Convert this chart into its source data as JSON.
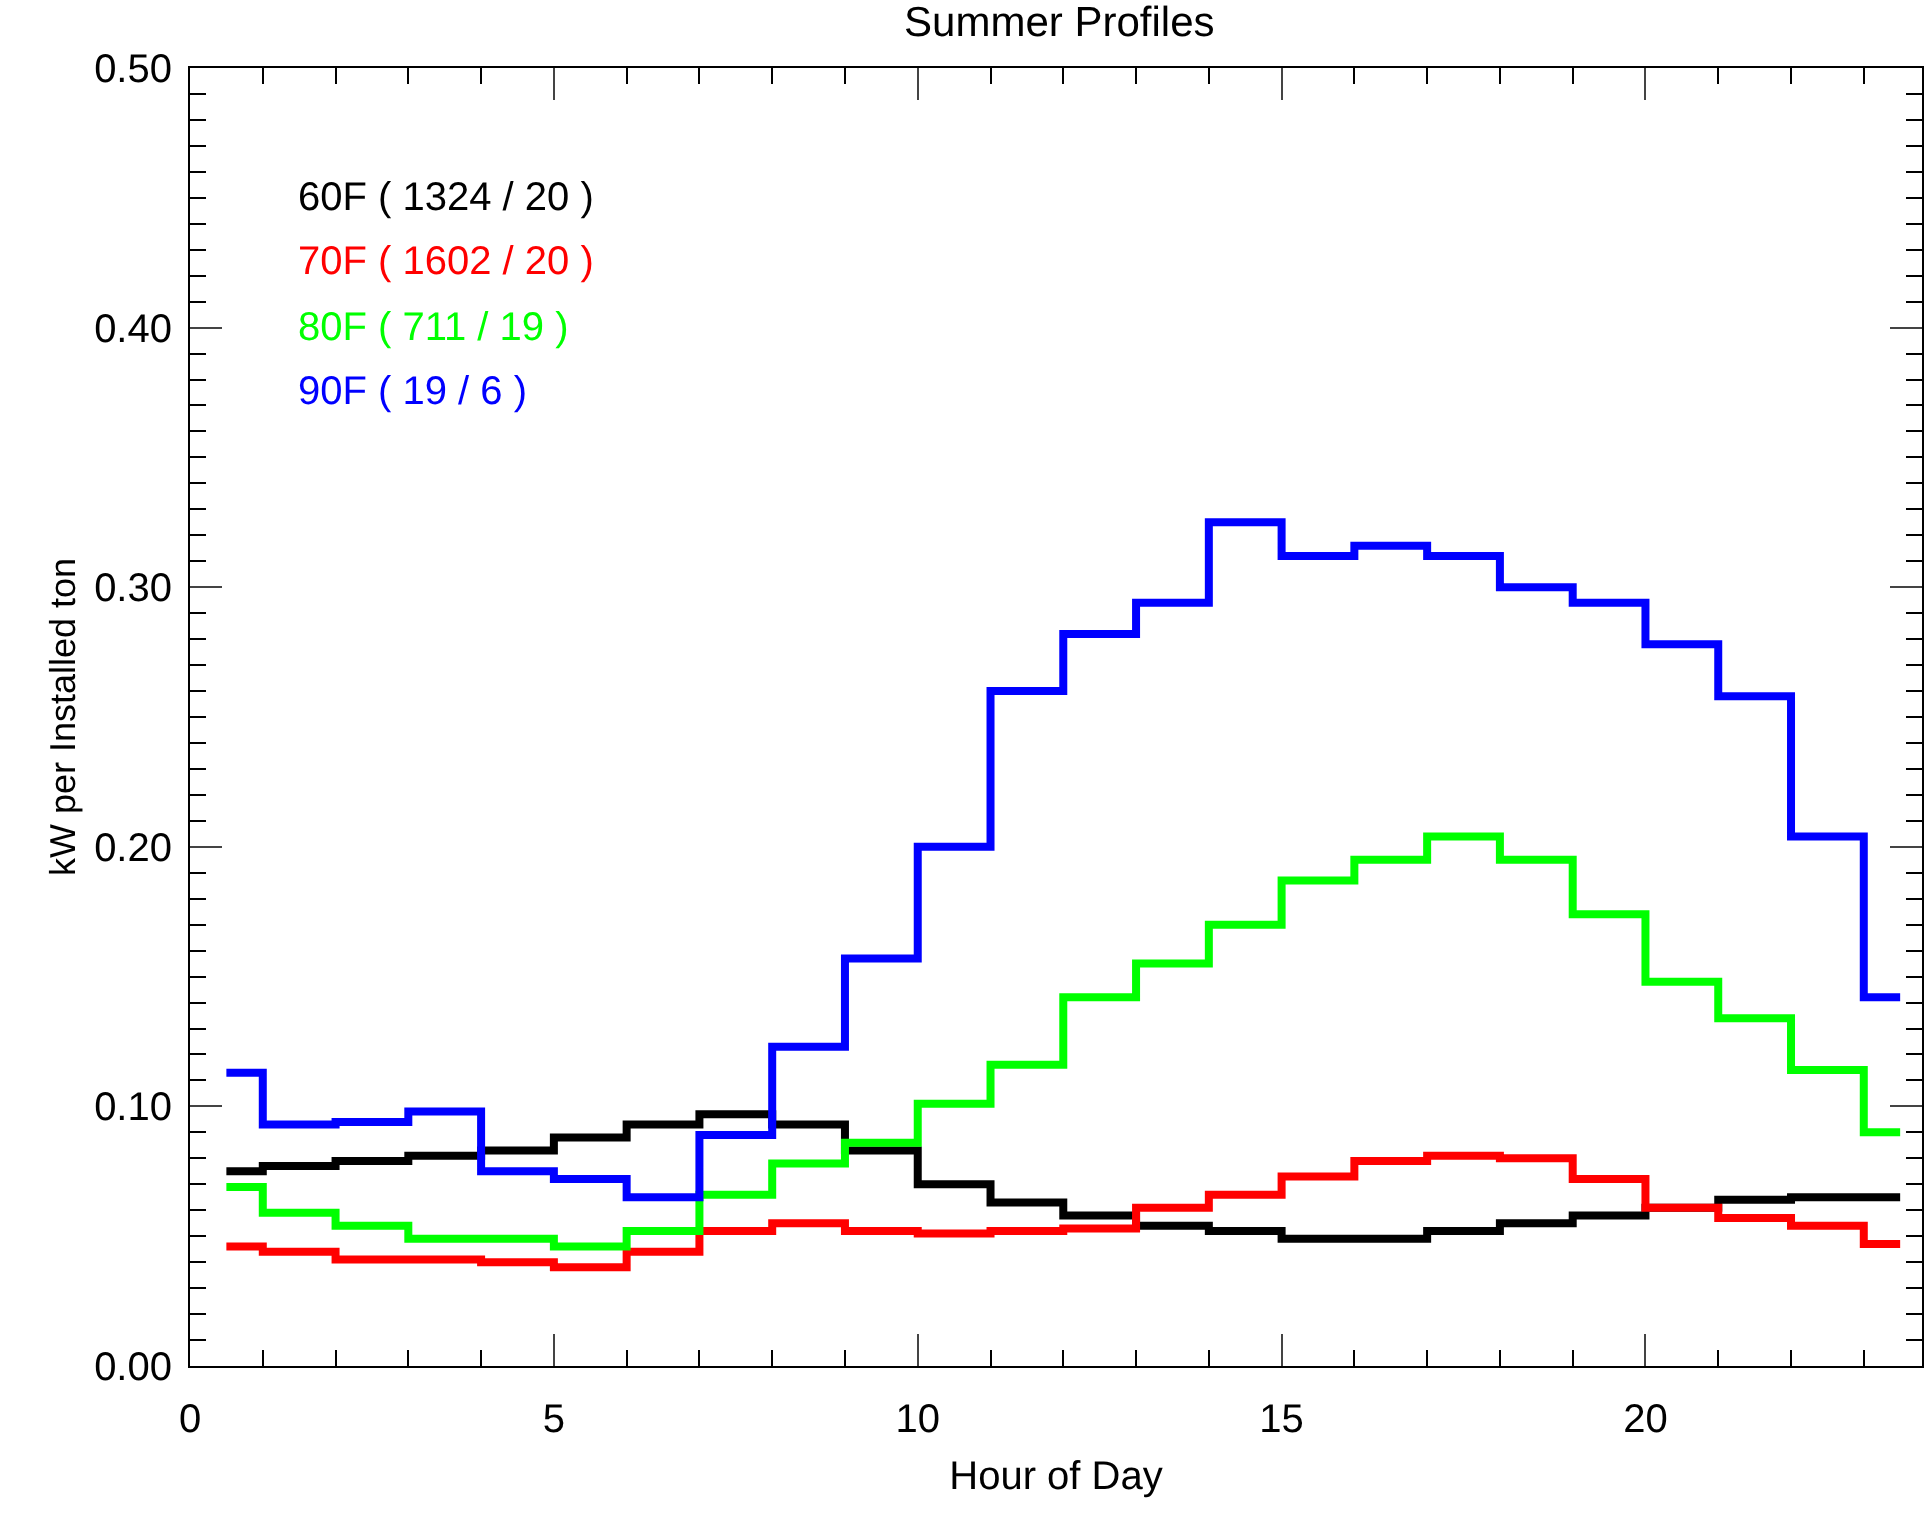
{
  "chart_data": {
    "type": "step",
    "title": "Summer Profiles",
    "xlabel": "Hour of Day",
    "ylabel": "kW per Installed ton",
    "x": [
      0.5,
      1.5,
      2.5,
      3.5,
      4.5,
      5.5,
      6.5,
      7.5,
      8.5,
      9.5,
      10.5,
      11.5,
      12.5,
      13.5,
      14.5,
      15.5,
      16.5,
      17.5,
      18.5,
      19.5,
      20.5,
      21.5,
      22.5,
      23.5
    ],
    "series": [
      {
        "name": "60F ( 1324 / 20 )",
        "color": "#000000",
        "values": [
          0.075,
          0.077,
          0.079,
          0.081,
          0.083,
          0.088,
          0.093,
          0.097,
          0.093,
          0.083,
          0.07,
          0.063,
          0.058,
          0.054,
          0.052,
          0.049,
          0.049,
          0.052,
          0.055,
          0.058,
          0.061,
          0.064,
          0.065,
          0.065
        ]
      },
      {
        "name": "70F ( 1602 / 20 )",
        "color": "#ff0000",
        "values": [
          0.046,
          0.044,
          0.041,
          0.041,
          0.04,
          0.038,
          0.044,
          0.052,
          0.055,
          0.052,
          0.051,
          0.052,
          0.053,
          0.061,
          0.066,
          0.073,
          0.079,
          0.081,
          0.08,
          0.072,
          0.061,
          0.057,
          0.054,
          0.047
        ]
      },
      {
        "name": "80F ( 711 / 19 )",
        "color": "#00ff00",
        "values": [
          0.069,
          0.059,
          0.054,
          0.049,
          0.049,
          0.046,
          0.052,
          0.066,
          0.078,
          0.086,
          0.101,
          0.116,
          0.142,
          0.155,
          0.17,
          0.187,
          0.195,
          0.204,
          0.195,
          0.174,
          0.148,
          0.134,
          0.114,
          0.09
        ]
      },
      {
        "name": "90F ( 19 / 6 )",
        "color": "#0000ff",
        "values": [
          0.113,
          0.093,
          0.094,
          0.098,
          0.075,
          0.072,
          0.065,
          0.089,
          0.123,
          0.157,
          0.2,
          0.26,
          0.282,
          0.294,
          0.325,
          0.312,
          0.316,
          0.312,
          0.3,
          0.294,
          0.278,
          0.258,
          0.204,
          0.142
        ]
      }
    ],
    "xlim": [
      0,
      23.8
    ],
    "xticks": [
      0,
      5,
      10,
      15,
      20
    ],
    "ylim": [
      0,
      0.5
    ],
    "yticks": [
      {
        "value": 0,
        "label": "0.00"
      },
      {
        "value": 0.1,
        "label": "0.10"
      },
      {
        "value": 0.2,
        "label": "0.20"
      },
      {
        "value": 0.3,
        "label": "0.30"
      },
      {
        "value": 0.4,
        "label": "0.40"
      },
      {
        "value": 0.5,
        "label": "0.50"
      }
    ],
    "legend": "top left",
    "grid": false,
    "line_style": "solid",
    "marker": "none"
  }
}
